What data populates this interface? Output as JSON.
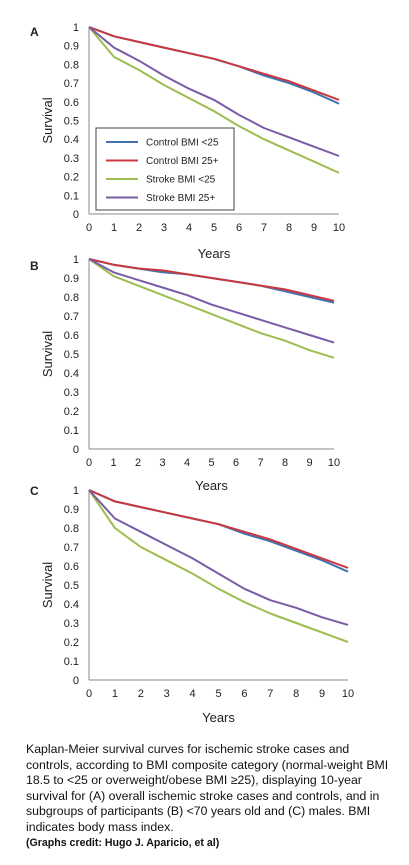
{
  "colors": {
    "control_lt25": "#3f73b0",
    "control_25p": "#c9383f",
    "stroke_lt25": "#9cbd4f",
    "stroke_25p": "#7a5ba6"
  },
  "caption": {
    "text": "Kaplan-Meier survival curves for ischemic stroke cases and controls, according to BMI composite category (normal-weight BMI 18.5 to <25 or overweight/obese BMI ≥25), displaying 10-year survival for (A) overall ischemic stroke cases and controls, and in subgroups of participants (B) <70 years old and (C) males. BMI indicates body mass index.",
    "credit": "(Graphs credit: Hugo J. Aparicio, et al)"
  },
  "chart_data": [
    {
      "panel": "A",
      "type": "line",
      "xlabel": "Years",
      "ylabel": "Survival",
      "xlim": [
        0,
        10
      ],
      "ylim": [
        0,
        1
      ],
      "xticks": [
        "0",
        "1",
        "2",
        "3",
        "4",
        "5",
        "6",
        "7",
        "8",
        "9",
        "10"
      ],
      "yticks": [
        "0",
        "0.1",
        "0.2",
        "0.3",
        "0.4",
        "0.5",
        "0.6",
        "0.7",
        "0.8",
        "0.9",
        "1"
      ],
      "grid": false,
      "legend": {
        "position": "bottom-left",
        "entries": [
          "Control BMI <25",
          "Control BMI 25+",
          "Stroke BMI <25",
          "Stroke BMI 25+"
        ]
      },
      "x": [
        0,
        1,
        2,
        3,
        4,
        5,
        6,
        7,
        8,
        9,
        10
      ],
      "series": [
        {
          "name": "Control BMI <25",
          "values": [
            1.0,
            0.95,
            0.92,
            0.89,
            0.86,
            0.83,
            0.79,
            0.74,
            0.7,
            0.65,
            0.59
          ]
        },
        {
          "name": "Control BMI 25+",
          "values": [
            1.0,
            0.95,
            0.92,
            0.89,
            0.86,
            0.83,
            0.79,
            0.75,
            0.71,
            0.66,
            0.61
          ]
        },
        {
          "name": "Stroke BMI <25",
          "values": [
            1.0,
            0.84,
            0.77,
            0.69,
            0.62,
            0.55,
            0.47,
            0.4,
            0.34,
            0.28,
            0.22
          ]
        },
        {
          "name": "Stroke BMI 25+",
          "values": [
            1.0,
            0.89,
            0.82,
            0.74,
            0.67,
            0.61,
            0.53,
            0.46,
            0.41,
            0.36,
            0.31
          ]
        }
      ]
    },
    {
      "panel": "B",
      "type": "line",
      "xlabel": "Years",
      "ylabel": "Survival",
      "xlim": [
        0,
        10
      ],
      "ylim": [
        0,
        1
      ],
      "xticks": [
        "0",
        "1",
        "2",
        "3",
        "4",
        "5",
        "6",
        "7",
        "8",
        "9",
        "10"
      ],
      "yticks": [
        "0",
        "0.1",
        "0.2",
        "0.3",
        "0.4",
        "0.5",
        "0.6",
        "0.7",
        "0.8",
        "0.9",
        "1"
      ],
      "grid": false,
      "x": [
        0,
        1,
        2,
        3,
        4,
        5,
        6,
        7,
        8,
        9,
        10
      ],
      "series": [
        {
          "name": "Control BMI <25",
          "values": [
            1.0,
            0.97,
            0.95,
            0.93,
            0.92,
            0.9,
            0.88,
            0.86,
            0.83,
            0.8,
            0.77
          ]
        },
        {
          "name": "Control BMI 25+",
          "values": [
            1.0,
            0.97,
            0.95,
            0.94,
            0.92,
            0.9,
            0.88,
            0.86,
            0.84,
            0.81,
            0.78
          ]
        },
        {
          "name": "Stroke BMI <25",
          "values": [
            1.0,
            0.91,
            0.86,
            0.81,
            0.76,
            0.71,
            0.66,
            0.61,
            0.57,
            0.52,
            0.48
          ]
        },
        {
          "name": "Stroke BMI 25+",
          "values": [
            1.0,
            0.93,
            0.89,
            0.85,
            0.81,
            0.76,
            0.72,
            0.68,
            0.64,
            0.6,
            0.56
          ]
        }
      ]
    },
    {
      "panel": "C",
      "type": "line",
      "xlabel": "Years",
      "ylabel": "Survival",
      "xlim": [
        0,
        10
      ],
      "ylim": [
        0,
        1
      ],
      "xticks": [
        "0",
        "1",
        "2",
        "3",
        "4",
        "5",
        "6",
        "7",
        "8",
        "9",
        "10"
      ],
      "yticks": [
        "0",
        "0.1",
        "0.2",
        "0.3",
        "0.4",
        "0.5",
        "0.6",
        "0.7",
        "0.8",
        "0.9",
        "1"
      ],
      "grid": false,
      "x": [
        0,
        1,
        2,
        3,
        4,
        5,
        6,
        7,
        8,
        9,
        10
      ],
      "series": [
        {
          "name": "Control BMI <25",
          "values": [
            1.0,
            0.94,
            0.91,
            0.88,
            0.85,
            0.82,
            0.77,
            0.73,
            0.68,
            0.63,
            0.57
          ]
        },
        {
          "name": "Control BMI 25+",
          "values": [
            1.0,
            0.94,
            0.91,
            0.88,
            0.85,
            0.82,
            0.78,
            0.74,
            0.69,
            0.64,
            0.59
          ]
        },
        {
          "name": "Stroke BMI <25",
          "values": [
            1.0,
            0.8,
            0.7,
            0.63,
            0.56,
            0.48,
            0.41,
            0.35,
            0.3,
            0.25,
            0.2
          ]
        },
        {
          "name": "Stroke BMI 25+",
          "values": [
            1.0,
            0.85,
            0.78,
            0.71,
            0.64,
            0.56,
            0.48,
            0.42,
            0.38,
            0.33,
            0.29
          ]
        }
      ]
    }
  ]
}
